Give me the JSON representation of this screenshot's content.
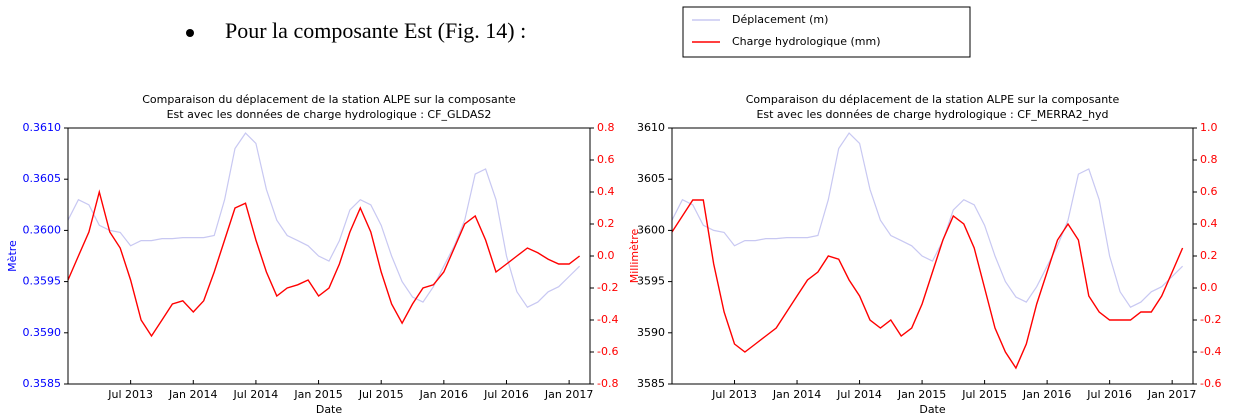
{
  "bullet": "Pour la composante Est (Fig. 14) :",
  "legend": [
    {
      "label": "Déplacement (m)",
      "color": "#c8c8f2"
    },
    {
      "label": "Charge hydrologique (mm)",
      "color": "#ff0000"
    }
  ],
  "chart_data": [
    {
      "type": "line",
      "title": [
        "Comparaison du déplacement de la station ALPE sur la composante",
        "Est avec les données de charge hydrologique : CF_GLDAS2"
      ],
      "xlabel": "Date",
      "ylabel": "Mètre",
      "y2label": "Millimètre",
      "ycolor": "#0000ff",
      "y2color": "#ff0000",
      "x": [
        "2013-01",
        "2013-02",
        "2013-03",
        "2013-04",
        "2013-05",
        "2013-06",
        "2013-07",
        "2013-08",
        "2013-09",
        "2013-10",
        "2013-11",
        "2013-12",
        "2014-01",
        "2014-02",
        "2014-03",
        "2014-04",
        "2014-05",
        "2014-06",
        "2014-07",
        "2014-08",
        "2014-09",
        "2014-10",
        "2014-11",
        "2014-12",
        "2015-01",
        "2015-02",
        "2015-03",
        "2015-04",
        "2015-05",
        "2015-06",
        "2015-07",
        "2015-08",
        "2015-09",
        "2015-10",
        "2015-11",
        "2015-12",
        "2016-01",
        "2016-02",
        "2016-03",
        "2016-04",
        "2016-05",
        "2016-06",
        "2016-07",
        "2016-08",
        "2016-09",
        "2016-10",
        "2016-11",
        "2016-12",
        "2017-01",
        "2017-02"
      ],
      "xlim": [
        "2013-01",
        "2017-03"
      ],
      "xticks": [
        {
          "value": "2013-07",
          "label": "Jul 2013"
        },
        {
          "value": "2014-01",
          "label": "Jan 2014"
        },
        {
          "value": "2014-07",
          "label": "Jul 2014"
        },
        {
          "value": "2015-01",
          "label": "Jan 2015"
        },
        {
          "value": "2015-07",
          "label": "Jul 2015"
        },
        {
          "value": "2016-01",
          "label": "Jan 2016"
        },
        {
          "value": "2016-07",
          "label": "Jul 2016"
        },
        {
          "value": "2017-01",
          "label": "Jan 2017"
        }
      ],
      "ylim": [
        0.3585,
        0.361
      ],
      "yticks": [
        0.3585,
        {
          "value": 0.359,
          "label": "0.3590"
        },
        0.3595,
        {
          "value": 0.36,
          "label": "0.3600"
        },
        0.3605,
        {
          "value": 0.361,
          "label": "0.3610"
        }
      ],
      "y2lim": [
        -0.8,
        0.8
      ],
      "y2ticks": [
        -0.8,
        -0.6,
        -0.4,
        -0.2,
        {
          "value": 0,
          "label": "0.0"
        },
        0.2,
        0.4,
        0.6,
        0.8
      ],
      "series": [
        {
          "name": "Déplacement (m)",
          "color": "#c8c8f2",
          "values": [
            0.3601,
            0.3603,
            0.36025,
            0.36005,
            0.36,
            0.35998,
            0.35985,
            0.3599,
            0.3599,
            0.35992,
            0.35992,
            0.35993,
            0.35993,
            0.35993,
            0.35995,
            0.3603,
            0.3608,
            0.36095,
            0.36085,
            0.3604,
            0.3601,
            0.35995,
            0.3599,
            0.35985,
            0.35975,
            0.3597,
            0.3599,
            0.3602,
            0.3603,
            0.36025,
            0.36005,
            0.35975,
            0.3595,
            0.35935,
            0.3593,
            0.35945,
            0.35965,
            0.35985,
            0.3601,
            0.36055,
            0.3606,
            0.3603,
            0.35975,
            0.3594,
            0.35925,
            0.3593,
            0.3594,
            0.35945,
            0.35955,
            0.35965
          ]
        },
        {
          "name": "Charge hydrologique (mm)",
          "color": "#ff0000",
          "axis": "y2",
          "values": [
            -0.15,
            0,
            0.15,
            0.4,
            0.15,
            0.05,
            -0.15,
            -0.4,
            -0.5,
            -0.4,
            -0.3,
            -0.28,
            -0.35,
            -0.28,
            -0.1,
            0.1,
            0.3,
            0.33,
            0.1,
            -0.1,
            -0.25,
            -0.2,
            -0.18,
            -0.15,
            -0.25,
            -0.2,
            -0.05,
            0.15,
            0.3,
            0.15,
            -0.1,
            -0.3,
            -0.42,
            -0.3,
            -0.2,
            -0.18,
            -0.1,
            0.05,
            0.2,
            0.25,
            0.1,
            -0.1,
            -0.05,
            0,
            0.05,
            0.02,
            -0.02,
            -0.05,
            -0.05,
            0
          ]
        }
      ]
    },
    {
      "type": "line",
      "title": [
        "Comparaison du déplacement de la station ALPE sur la composante",
        "Est avec les données de charge hydrologique : CF_MERRA2_hyd"
      ],
      "xlabel": "Date",
      "ycolor": "#000000",
      "y2color": "#ff0000",
      "x": [
        "2013-01",
        "2013-02",
        "2013-03",
        "2013-04",
        "2013-05",
        "2013-06",
        "2013-07",
        "2013-08",
        "2013-09",
        "2013-10",
        "2013-11",
        "2013-12",
        "2014-01",
        "2014-02",
        "2014-03",
        "2014-04",
        "2014-05",
        "2014-06",
        "2014-07",
        "2014-08",
        "2014-09",
        "2014-10",
        "2014-11",
        "2014-12",
        "2015-01",
        "2015-02",
        "2015-03",
        "2015-04",
        "2015-05",
        "2015-06",
        "2015-07",
        "2015-08",
        "2015-09",
        "2015-10",
        "2015-11",
        "2015-12",
        "2016-01",
        "2016-02",
        "2016-03",
        "2016-04",
        "2016-05",
        "2016-06",
        "2016-07",
        "2016-08",
        "2016-09",
        "2016-10",
        "2016-11",
        "2016-12",
        "2017-01",
        "2017-02"
      ],
      "xlim": [
        "2013-01",
        "2017-03"
      ],
      "xticks": [
        {
          "value": "2013-07",
          "label": "Jul 2013"
        },
        {
          "value": "2014-01",
          "label": "Jan 2014"
        },
        {
          "value": "2014-07",
          "label": "Jul 2014"
        },
        {
          "value": "2015-01",
          "label": "Jan 2015"
        },
        {
          "value": "2015-07",
          "label": "Jul 2015"
        },
        {
          "value": "2016-01",
          "label": "Jan 2016"
        },
        {
          "value": "2016-07",
          "label": "Jul 2016"
        },
        {
          "value": "2017-01",
          "label": "Jan 2017"
        }
      ],
      "ylim": [
        0.3585,
        0.361
      ],
      "yticks": [
        {
          "value": 0.3585,
          "label": "3585"
        },
        {
          "value": 0.359,
          "label": "3590"
        },
        {
          "value": 0.3595,
          "label": "3595"
        },
        {
          "value": 0.36,
          "label": "3600"
        },
        {
          "value": 0.3605,
          "label": "3605"
        },
        {
          "value": 0.361,
          "label": "3610"
        }
      ],
      "y2lim": [
        -0.6,
        1
      ],
      "y2ticks": [
        -0.6,
        -0.4,
        -0.2,
        {
          "value": 0,
          "label": "0.0"
        },
        0.2,
        0.4,
        0.6,
        0.8,
        {
          "value": 1,
          "label": "1.0"
        }
      ],
      "series": [
        {
          "color": "#c8c8f2",
          "values": [
            0.3601,
            0.3603,
            0.36025,
            0.36005,
            0.36,
            0.35998,
            0.35985,
            0.3599,
            0.3599,
            0.35992,
            0.35992,
            0.35993,
            0.35993,
            0.35993,
            0.35995,
            0.3603,
            0.3608,
            0.36095,
            0.36085,
            0.3604,
            0.3601,
            0.35995,
            0.3599,
            0.35985,
            0.35975,
            0.3597,
            0.3599,
            0.3602,
            0.3603,
            0.36025,
            0.36005,
            0.35975,
            0.3595,
            0.35935,
            0.3593,
            0.35945,
            0.35965,
            0.35985,
            0.3601,
            0.36055,
            0.3606,
            0.3603,
            0.35975,
            0.3594,
            0.35925,
            0.3593,
            0.3594,
            0.35945,
            0.35955,
            0.35965
          ]
        },
        {
          "color": "#ff0000",
          "axis": "y2",
          "values": [
            0.35,
            0.45,
            0.55,
            0.55,
            0.15,
            -0.15,
            -0.35,
            -0.4,
            -0.35,
            -0.3,
            -0.25,
            -0.15,
            -0.05,
            0.05,
            0.1,
            0.2,
            0.18,
            0.05,
            -0.05,
            -0.2,
            -0.25,
            -0.2,
            -0.3,
            -0.25,
            -0.1,
            0.1,
            0.3,
            0.45,
            0.4,
            0.25,
            0,
            -0.25,
            -0.4,
            -0.5,
            -0.35,
            -0.1,
            0.1,
            0.3,
            0.4,
            0.3,
            -0.05,
            -0.15,
            -0.2,
            -0.2,
            -0.2,
            -0.15,
            -0.15,
            -0.05,
            0.1,
            0.25
          ]
        }
      ]
    }
  ]
}
